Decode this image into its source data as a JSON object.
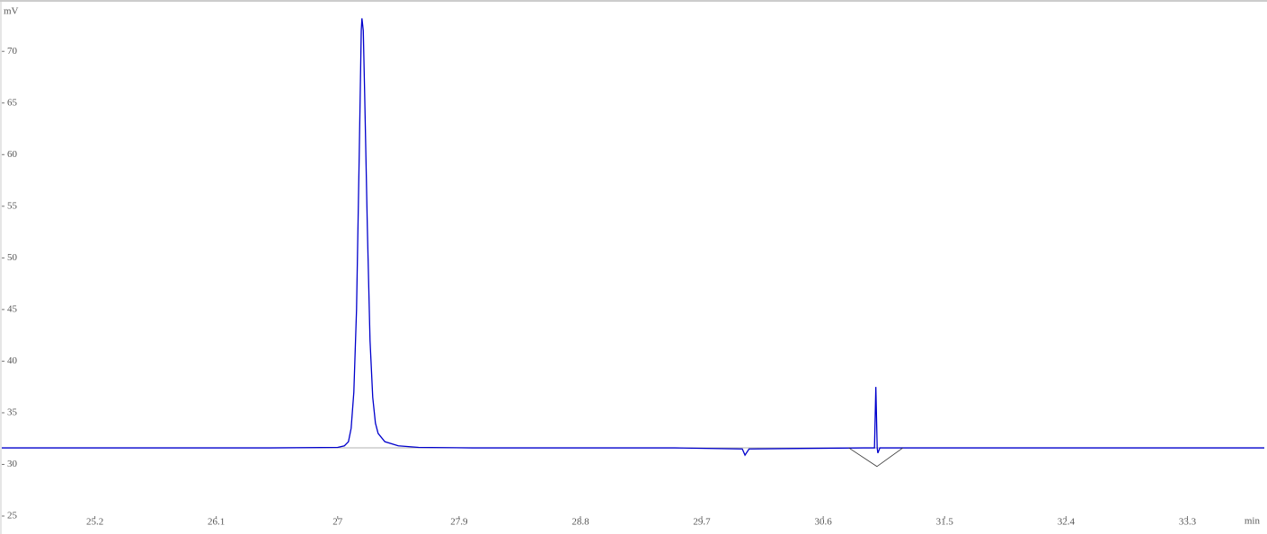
{
  "chart_data": {
    "type": "line",
    "x_label": "min",
    "y_label": "mV",
    "xlim": [
      24.51,
      33.87
    ],
    "ylim": [
      25,
      74.8
    ],
    "xticks": [
      25.2,
      26.1,
      27,
      27.9,
      28.8,
      29.7,
      30.6,
      31.5,
      32.4,
      33.3
    ],
    "yticks": [
      25,
      30,
      35,
      40,
      45,
      50,
      55,
      60,
      65,
      70
    ],
    "series": [
      {
        "color": "#0000cc",
        "x": [
          24.51,
          26.5,
          27.0,
          27.05,
          27.08,
          27.1,
          27.12,
          27.14,
          27.16,
          27.175,
          27.18,
          27.19,
          27.2,
          27.22,
          27.24,
          27.26,
          27.28,
          27.3,
          27.35,
          27.45,
          27.6,
          28.0,
          29.5,
          30.0,
          30.02,
          30.05,
          30.9,
          30.98,
          30.99,
          31.0,
          31.005,
          31.02,
          33.87
        ],
        "values": [
          31.6,
          31.6,
          31.65,
          31.8,
          32.2,
          33.5,
          37,
          45,
          60,
          72,
          73.2,
          72,
          66,
          53,
          42,
          36.5,
          34,
          33,
          32.2,
          31.8,
          31.65,
          31.6,
          31.6,
          31.5,
          30.9,
          31.5,
          31.6,
          31.6,
          37.5,
          31.6,
          31.1,
          31.6,
          31.6
        ]
      },
      {
        "color": "#333333",
        "x": [
          30.79,
          30.998,
          31.19
        ],
        "values": [
          31.6,
          29.8,
          31.6
        ]
      }
    ]
  }
}
